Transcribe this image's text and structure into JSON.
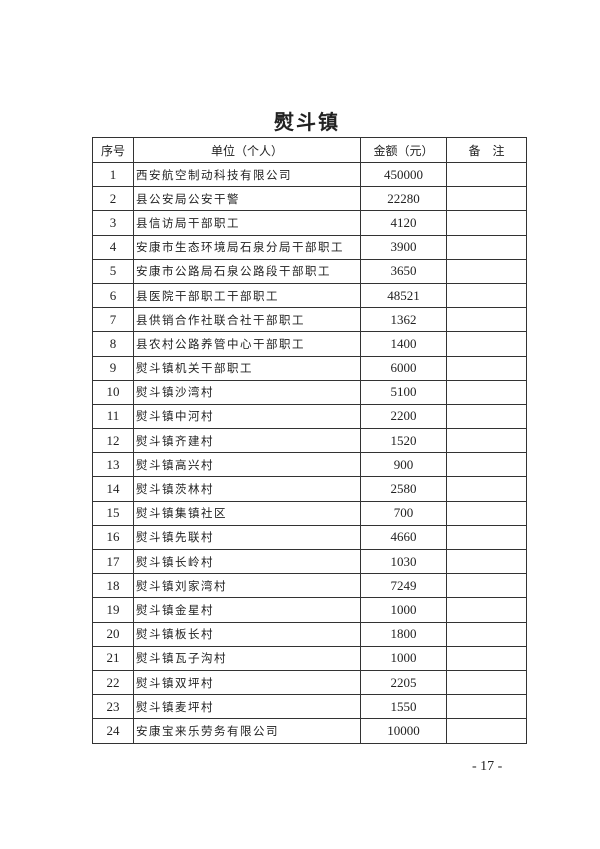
{
  "title": "熨斗镇",
  "headers": {
    "seq": "序号",
    "unit": "单位（个人）",
    "amount": "金额（元）",
    "remark": "备　注"
  },
  "rows": [
    {
      "seq": "1",
      "unit": "西安航空制动科技有限公司",
      "amount": "450000",
      "remark": ""
    },
    {
      "seq": "2",
      "unit": "县公安局公安干警",
      "amount": "22280",
      "remark": ""
    },
    {
      "seq": "3",
      "unit": "县信访局干部职工",
      "amount": "4120",
      "remark": ""
    },
    {
      "seq": "4",
      "unit": "安康市生态环境局石泉分局干部职工",
      "amount": "3900",
      "remark": ""
    },
    {
      "seq": "5",
      "unit": "安康市公路局石泉公路段干部职工",
      "amount": "3650",
      "remark": ""
    },
    {
      "seq": "6",
      "unit": "县医院干部职工干部职工",
      "amount": "48521",
      "remark": ""
    },
    {
      "seq": "7",
      "unit": "县供销合作社联合社干部职工",
      "amount": "1362",
      "remark": ""
    },
    {
      "seq": "8",
      "unit": "县农村公路养管中心干部职工",
      "amount": "1400",
      "remark": ""
    },
    {
      "seq": "9",
      "unit": "熨斗镇机关干部职工",
      "amount": "6000",
      "remark": ""
    },
    {
      "seq": "10",
      "unit": "熨斗镇沙湾村",
      "amount": "5100",
      "remark": ""
    },
    {
      "seq": "11",
      "unit": "熨斗镇中河村",
      "amount": "2200",
      "remark": ""
    },
    {
      "seq": "12",
      "unit": "熨斗镇齐建村",
      "amount": "1520",
      "remark": ""
    },
    {
      "seq": "13",
      "unit": "熨斗镇高兴村",
      "amount": "900",
      "remark": ""
    },
    {
      "seq": "14",
      "unit": "熨斗镇茨林村",
      "amount": "2580",
      "remark": ""
    },
    {
      "seq": "15",
      "unit": "熨斗镇集镇社区",
      "amount": "700",
      "remark": ""
    },
    {
      "seq": "16",
      "unit": "熨斗镇先联村",
      "amount": "4660",
      "remark": ""
    },
    {
      "seq": "17",
      "unit": "熨斗镇长岭村",
      "amount": "1030",
      "remark": ""
    },
    {
      "seq": "18",
      "unit": "熨斗镇刘家湾村",
      "amount": "7249",
      "remark": ""
    },
    {
      "seq": "19",
      "unit": "熨斗镇金星村",
      "amount": "1000",
      "remark": ""
    },
    {
      "seq": "20",
      "unit": "熨斗镇板长村",
      "amount": "1800",
      "remark": ""
    },
    {
      "seq": "21",
      "unit": "熨斗镇瓦子沟村",
      "amount": "1000",
      "remark": ""
    },
    {
      "seq": "22",
      "unit": "熨斗镇双坪村",
      "amount": "2205",
      "remark": ""
    },
    {
      "seq": "23",
      "unit": "熨斗镇麦坪村",
      "amount": "1550",
      "remark": ""
    },
    {
      "seq": "24",
      "unit": "安康宝来乐劳务有限公司",
      "amount": "10000",
      "remark": ""
    }
  ],
  "page_number": "- 17 -"
}
